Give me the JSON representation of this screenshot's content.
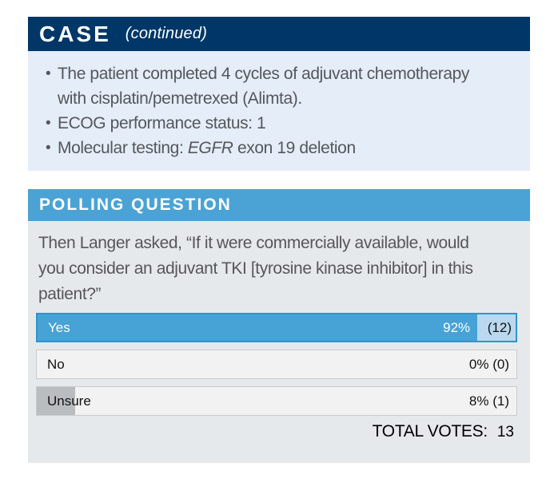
{
  "colors": {
    "navy": "#003768",
    "case_body_bg": "#E4EDF8",
    "sky": "#4BA3D5",
    "poll_body_bg": "#E6E9EB",
    "yes_fill": "#47A2D6",
    "yes_rest": "#BAD9EF",
    "yes_border": "#2D95CD",
    "row_bg": "#F2F2F3",
    "row_border": "#C9CBCD",
    "unsure_fill": "#B9BDBF",
    "text_gray": "#55575A",
    "text_dark": "#111111"
  },
  "case_panel": {
    "title": "CASE",
    "subtitle": "(continued)",
    "bullets": [
      [
        {
          "t": "The patient completed 4 cycles of adjuvant chemotherapy with cisplatin/pemetrexed (Alimta)."
        }
      ],
      [
        {
          "t": "ECOG performance status: 1"
        }
      ],
      [
        {
          "t": "Molecular testing: "
        },
        {
          "t": "EGFR",
          "i": true
        },
        {
          "t": " exon 19 deletion"
        }
      ]
    ]
  },
  "poll_panel": {
    "title": "POLLING QUESTION",
    "question": "Then Langer asked, “If it were commercially available, would you consider an adjuvant TKI [tyrosine kinase inhibitor] in this patient?”",
    "options": [
      {
        "label": "Yes",
        "pct": 92,
        "pct_label": "92%",
        "count_label": "(12)",
        "highlight": true
      },
      {
        "label": "No",
        "pct": 0,
        "pct_label": "0%",
        "count_label": "(0)",
        "highlight": false
      },
      {
        "label": "Unsure",
        "pct": 8,
        "pct_label": "8%",
        "count_label": "(1)",
        "highlight": false
      }
    ],
    "total_label": "TOTAL VOTES:",
    "total_value": "13"
  }
}
